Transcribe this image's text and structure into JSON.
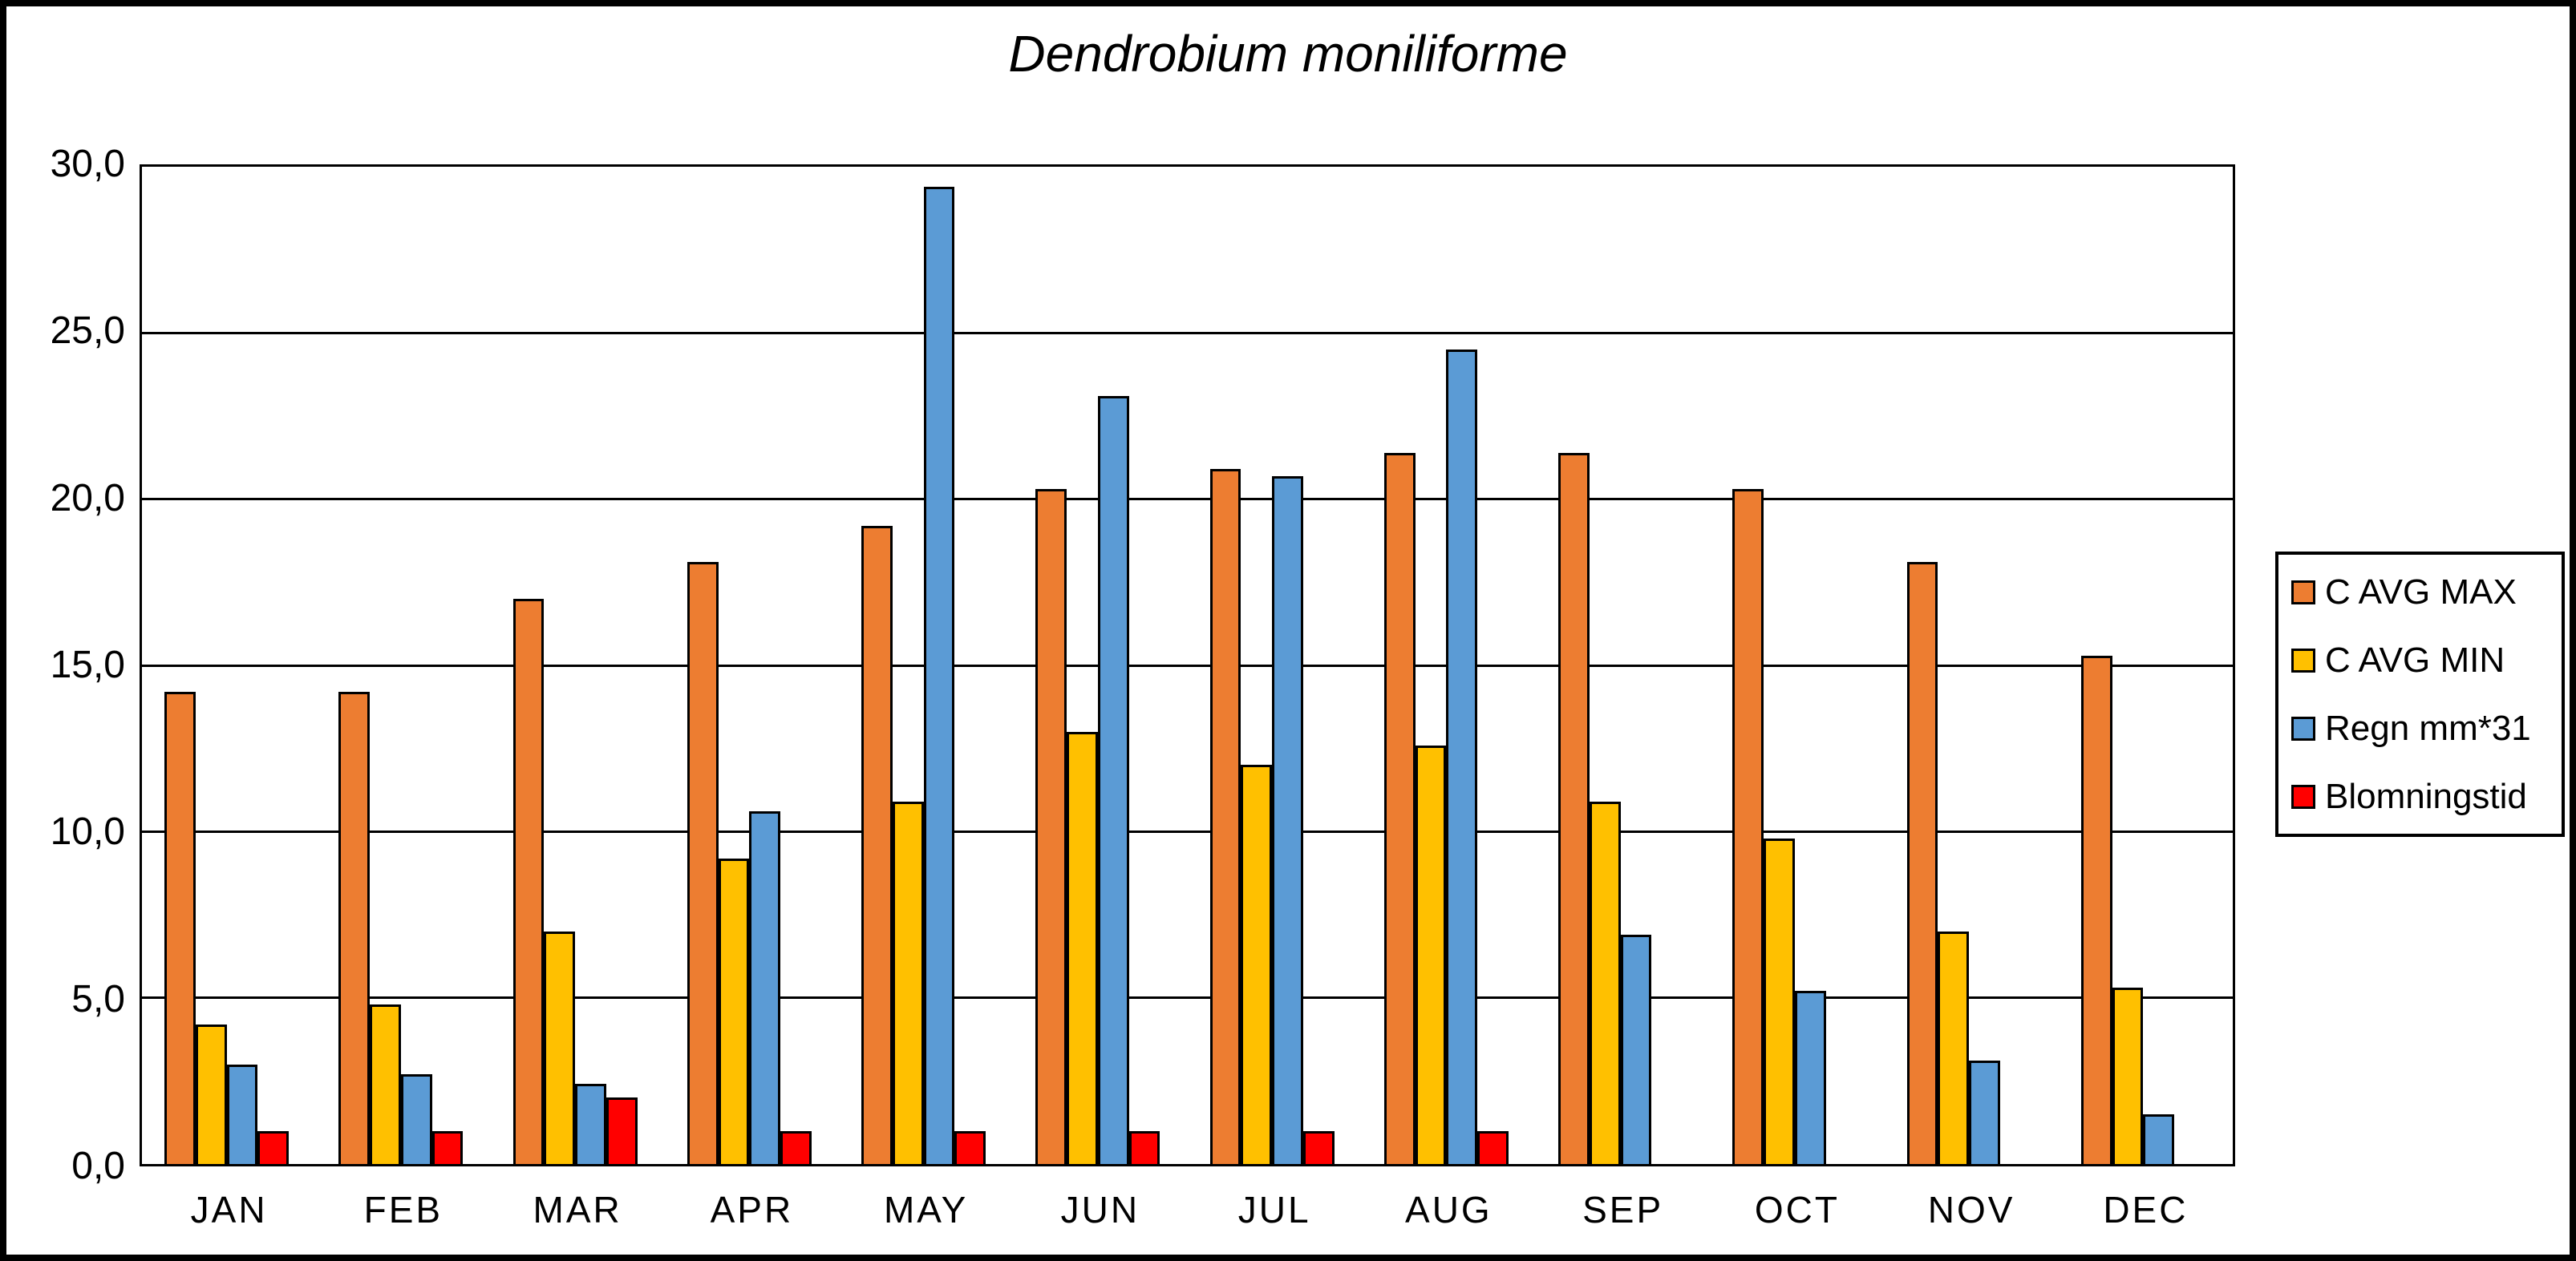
{
  "chart_data": {
    "type": "bar",
    "title": "Dendrobium moniliforme",
    "categories": [
      "JAN",
      "FEB",
      "MAR",
      "APR",
      "MAY",
      "JUN",
      "JUL",
      "AUG",
      "SEP",
      "OCT",
      "NOV",
      "DEC"
    ],
    "series": [
      {
        "name": "C AVG MAX",
        "color": "#ED7D31",
        "values": [
          14.2,
          14.2,
          17.0,
          18.1,
          19.2,
          20.3,
          20.9,
          21.4,
          21.4,
          20.3,
          18.1,
          15.3
        ]
      },
      {
        "name": "C AVG MIN",
        "color": "#FFC000",
        "values": [
          4.2,
          4.8,
          7.0,
          9.2,
          10.9,
          13.0,
          12.0,
          12.6,
          10.9,
          9.8,
          7.0,
          5.3
        ]
      },
      {
        "name": "Regn mm*31",
        "color": "#5B9BD5",
        "values": [
          3.0,
          2.7,
          2.4,
          10.6,
          29.4,
          23.1,
          20.7,
          24.5,
          6.9,
          5.2,
          3.1,
          1.5
        ]
      },
      {
        "name": "Blomningstid",
        "color": "#FF0000",
        "values": [
          1.0,
          1.0,
          2.0,
          1.0,
          1.0,
          1.0,
          1.0,
          1.0,
          0,
          0,
          0,
          0
        ]
      }
    ],
    "ylim": [
      0,
      30
    ],
    "y_ticks": [
      "0,0",
      "5,0",
      "10,0",
      "15,0",
      "20,0",
      "25,0",
      "30,0"
    ],
    "grid": true,
    "legend_position": "right",
    "background_color": "#FFFFFF",
    "axis_color": "#000000"
  }
}
